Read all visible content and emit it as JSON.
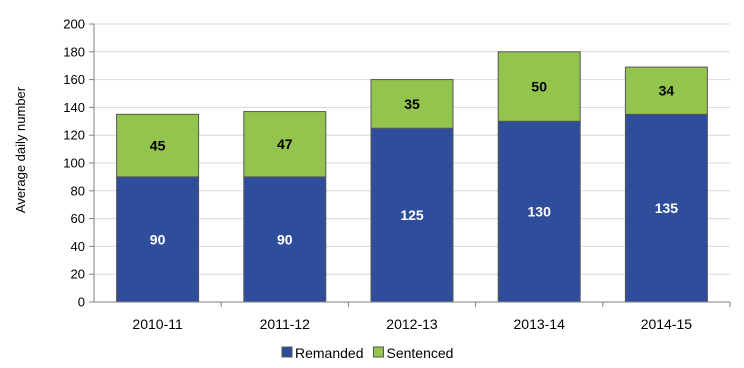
{
  "chart_data": {
    "type": "bar",
    "stacked": true,
    "categories": [
      "2010-11",
      "2011-12",
      "2012-13",
      "2013-14",
      "2014-15"
    ],
    "series": [
      {
        "name": "Remanded",
        "values": [
          90,
          90,
          125,
          130,
          135
        ],
        "color": "#2e4e9c",
        "label_color": "#ffffff"
      },
      {
        "name": "Sentenced",
        "values": [
          45,
          47,
          35,
          50,
          34
        ],
        "color": "#93c44e",
        "label_color": "#000000"
      }
    ],
    "ylabel": "Average daily number",
    "xlabel": "",
    "title": "",
    "ylim": [
      0,
      200
    ],
    "yticks": [
      0,
      20,
      40,
      60,
      80,
      100,
      120,
      140,
      160,
      180,
      200
    ],
    "grid": "horizontal",
    "grid_color": "#d9d9d9",
    "legend_position": "bottom"
  }
}
